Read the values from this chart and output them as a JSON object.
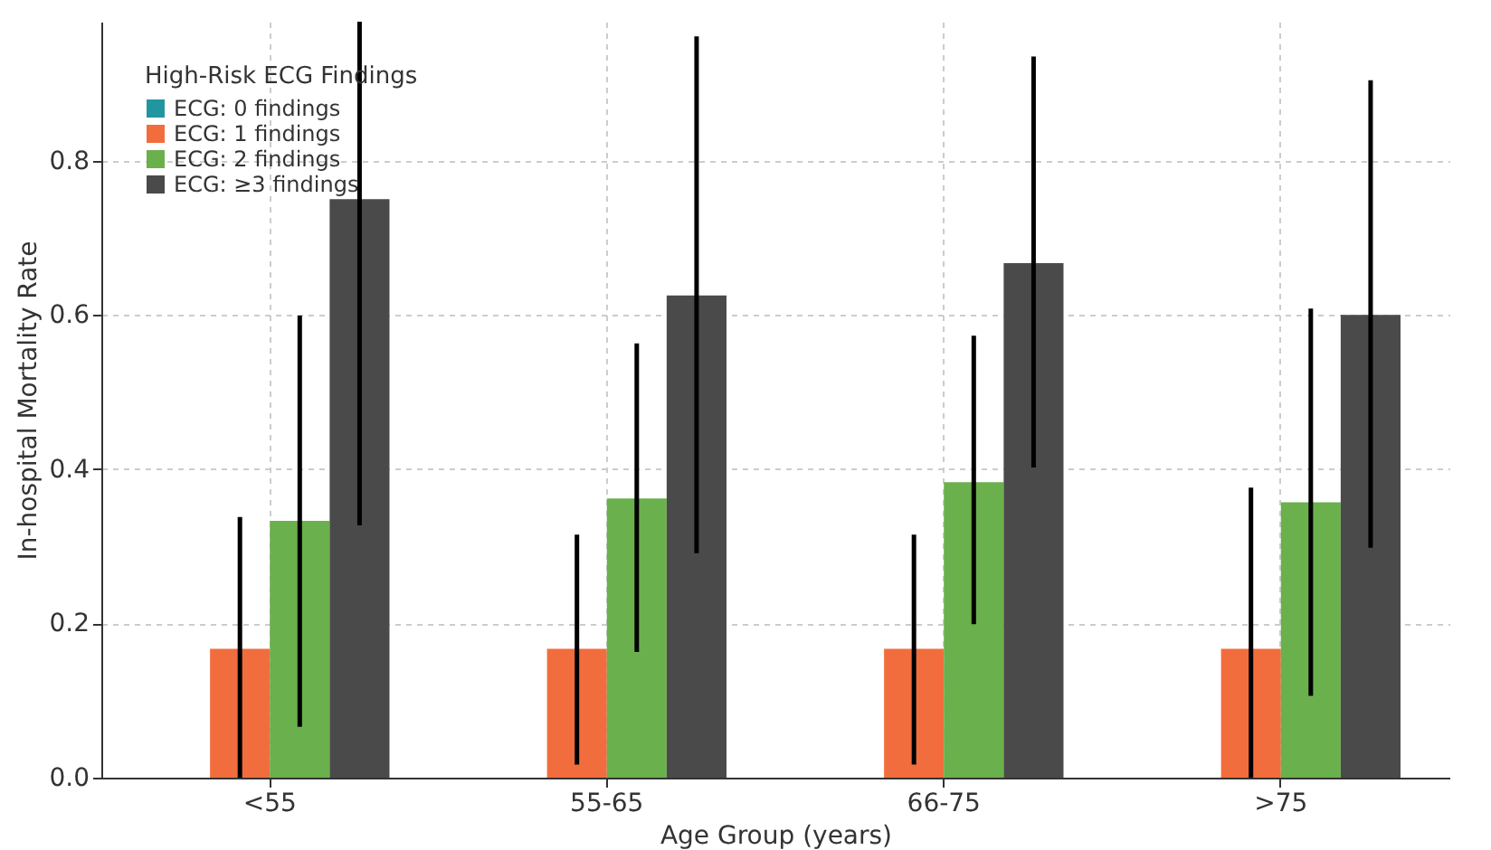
{
  "chart_data": {
    "type": "bar",
    "xlabel": "Age Group (years)",
    "ylabel": "In-hospital Mortality Rate",
    "legend_title": "High-Risk ECG Findings",
    "categories": [
      "<55",
      "55-65",
      "66-75",
      ">75"
    ],
    "series": [
      {
        "name": "ECG: 0 findings",
        "color": "#2196a0",
        "values": [
          0,
          0,
          0,
          0
        ],
        "errors": [
          null,
          null,
          null,
          null
        ]
      },
      {
        "name": "ECG: 1 findings",
        "color": "#f26d3d",
        "values": [
          0.167,
          0.167,
          0.167,
          0.167
        ],
        "errors": [
          [
            0,
            0.338
          ],
          [
            0.017,
            0.315
          ],
          [
            0.017,
            0.315
          ],
          [
            0,
            0.376
          ]
        ]
      },
      {
        "name": "ECG: 2 findings",
        "color": "#6ab04c",
        "values": [
          0.333,
          0.362,
          0.383,
          0.357
        ],
        "errors": [
          [
            0.066,
            0.599
          ],
          [
            0.163,
            0.563
          ],
          [
            0.199,
            0.573
          ],
          [
            0.106,
            0.608
          ]
        ]
      },
      {
        "name": "ECG: ≥3 findings",
        "color": "#4a4a4a",
        "values": [
          0.75,
          0.625,
          0.667,
          0.6
        ],
        "errors": [
          [
            0.327,
            0.98
          ],
          [
            0.291,
            0.961
          ],
          [
            0.402,
            0.935
          ],
          [
            0.298,
            0.904
          ]
        ]
      }
    ],
    "ylim": [
      0,
      0.98
    ],
    "yticks": [
      {
        "value": 0,
        "label": "0.0"
      },
      0.2,
      0.4,
      0.6,
      0.8
    ],
    "grid": true,
    "legend": "top left"
  }
}
